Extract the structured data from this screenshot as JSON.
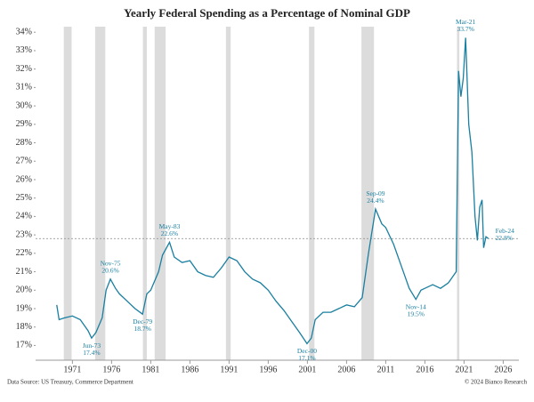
{
  "chart_data": {
    "type": "line",
    "title": "Yearly Federal Spending as a Percentage of Nominal GDP",
    "source": "Data Source: US Treasury, Commerce Department",
    "credit": "© 2024 Bianco Research",
    "xlim": [
      1966.3,
      2028
    ],
    "xticks": [
      1971,
      1976,
      1981,
      1986,
      1991,
      1996,
      2001,
      2006,
      2011,
      2016,
      2021,
      2026
    ],
    "ylim": [
      16.2,
      34.3
    ],
    "yticks": [
      {
        "value": 17,
        "label": "17%"
      },
      {
        "value": 18,
        "label": "18%"
      },
      {
        "value": 19,
        "label": "19%"
      },
      {
        "value": 20,
        "label": "20%"
      },
      {
        "value": 21,
        "label": "21%"
      },
      {
        "value": 22,
        "label": "22%"
      },
      {
        "value": 23,
        "label": "23%"
      },
      {
        "value": 24,
        "label": "24%"
      },
      {
        "value": 25,
        "label": "25%"
      },
      {
        "value": 26,
        "label": "26%"
      },
      {
        "value": 27,
        "label": "27%"
      },
      {
        "value": 28,
        "label": "28%"
      },
      {
        "value": 29,
        "label": "29%"
      },
      {
        "value": 30,
        "label": "30%"
      },
      {
        "value": 31,
        "label": "31%"
      },
      {
        "value": 32,
        "label": "32%"
      },
      {
        "value": 33,
        "label": "33%"
      },
      {
        "value": 34,
        "label": "34%"
      }
    ],
    "recession_color": "#dcdcdc",
    "recessions": [
      [
        1969.9,
        1970.9
      ],
      [
        1973.9,
        1975.2
      ],
      [
        1980.0,
        1980.5
      ],
      [
        1981.5,
        1982.9
      ],
      [
        1990.6,
        1991.2
      ],
      [
        2001.2,
        2001.9
      ],
      [
        2007.9,
        2009.5
      ],
      [
        2020.1,
        2020.4
      ]
    ],
    "reference_line": 22.8,
    "series": [
      {
        "color": "#1a7fa0",
        "x": [
          1969.0,
          1969.3,
          1970,
          1971,
          1972,
          1973,
          1973.45,
          1974,
          1974.8,
          1975.3,
          1975.85,
          1976.5,
          1977,
          1978,
          1979,
          1979.95,
          1980.5,
          1981,
          1982,
          1982.5,
          1983.4,
          1984,
          1985,
          1986,
          1987,
          1988,
          1989,
          1990,
          1991,
          1992,
          1993,
          1994,
          1995,
          1996,
          1997,
          1998,
          1999,
          2000,
          2000.95,
          2001.5,
          2002,
          2003,
          2004,
          2005,
          2006,
          2007,
          2008,
          2008.8,
          2009.7,
          2010.5,
          2011,
          2012,
          2013,
          2014,
          2014.85,
          2015.5,
          2016,
          2017,
          2018,
          2019,
          2020,
          2020.3,
          2020.6,
          2020.9,
          2021.2,
          2021.6,
          2022,
          2022.4,
          2022.7,
          2023,
          2023.3,
          2023.5,
          2023.8,
          2024.1
        ],
        "values": [
          19.2,
          18.4,
          18.5,
          18.6,
          18.4,
          17.8,
          17.4,
          17.7,
          18.5,
          20.0,
          20.6,
          20.1,
          19.8,
          19.4,
          19.0,
          18.7,
          19.8,
          20.0,
          21.0,
          21.9,
          22.6,
          21.8,
          21.5,
          21.6,
          21.0,
          20.8,
          20.7,
          21.2,
          21.8,
          21.6,
          21.0,
          20.6,
          20.4,
          20.0,
          19.4,
          18.9,
          18.3,
          17.7,
          17.1,
          17.4,
          18.4,
          18.8,
          18.8,
          19.0,
          19.2,
          19.1,
          19.6,
          22.0,
          24.4,
          23.6,
          23.4,
          22.5,
          21.3,
          20.1,
          19.5,
          20.0,
          20.1,
          20.3,
          20.1,
          20.4,
          21.0,
          31.9,
          30.5,
          31.5,
          33.7,
          29.0,
          27.5,
          24.0,
          22.7,
          24.5,
          24.9,
          22.3,
          22.9,
          22.8
        ]
      }
    ],
    "annotations": [
      {
        "date": "Jun-73",
        "x": 1973.45,
        "value": 17.4,
        "value_label": "17.4%",
        "position": "below"
      },
      {
        "date": "Nov-75",
        "x": 1975.85,
        "value": 20.6,
        "value_label": "20.6%",
        "position": "above"
      },
      {
        "date": "Dec-79",
        "x": 1979.95,
        "value": 18.7,
        "value_label": "18.7%",
        "position": "below"
      },
      {
        "date": "May-83",
        "x": 1983.4,
        "value": 22.6,
        "value_label": "22.6%",
        "position": "above"
      },
      {
        "date": "Dec-00",
        "x": 2000.95,
        "value": 17.1,
        "value_label": "17.1%",
        "position": "below"
      },
      {
        "date": "Sep-09",
        "x": 2009.7,
        "value": 24.4,
        "value_label": "24.4%",
        "position": "above"
      },
      {
        "date": "Nov-14",
        "x": 2014.85,
        "value": 19.5,
        "value_label": "19.5%",
        "position": "below"
      },
      {
        "date": "Mar-21",
        "x": 2021.2,
        "value": 33.7,
        "value_label": "33.7%",
        "position": "above"
      },
      {
        "date": "Feb-24",
        "x": 2024.1,
        "value": 22.8,
        "value_label": "22.8%",
        "position": "right"
      }
    ]
  }
}
